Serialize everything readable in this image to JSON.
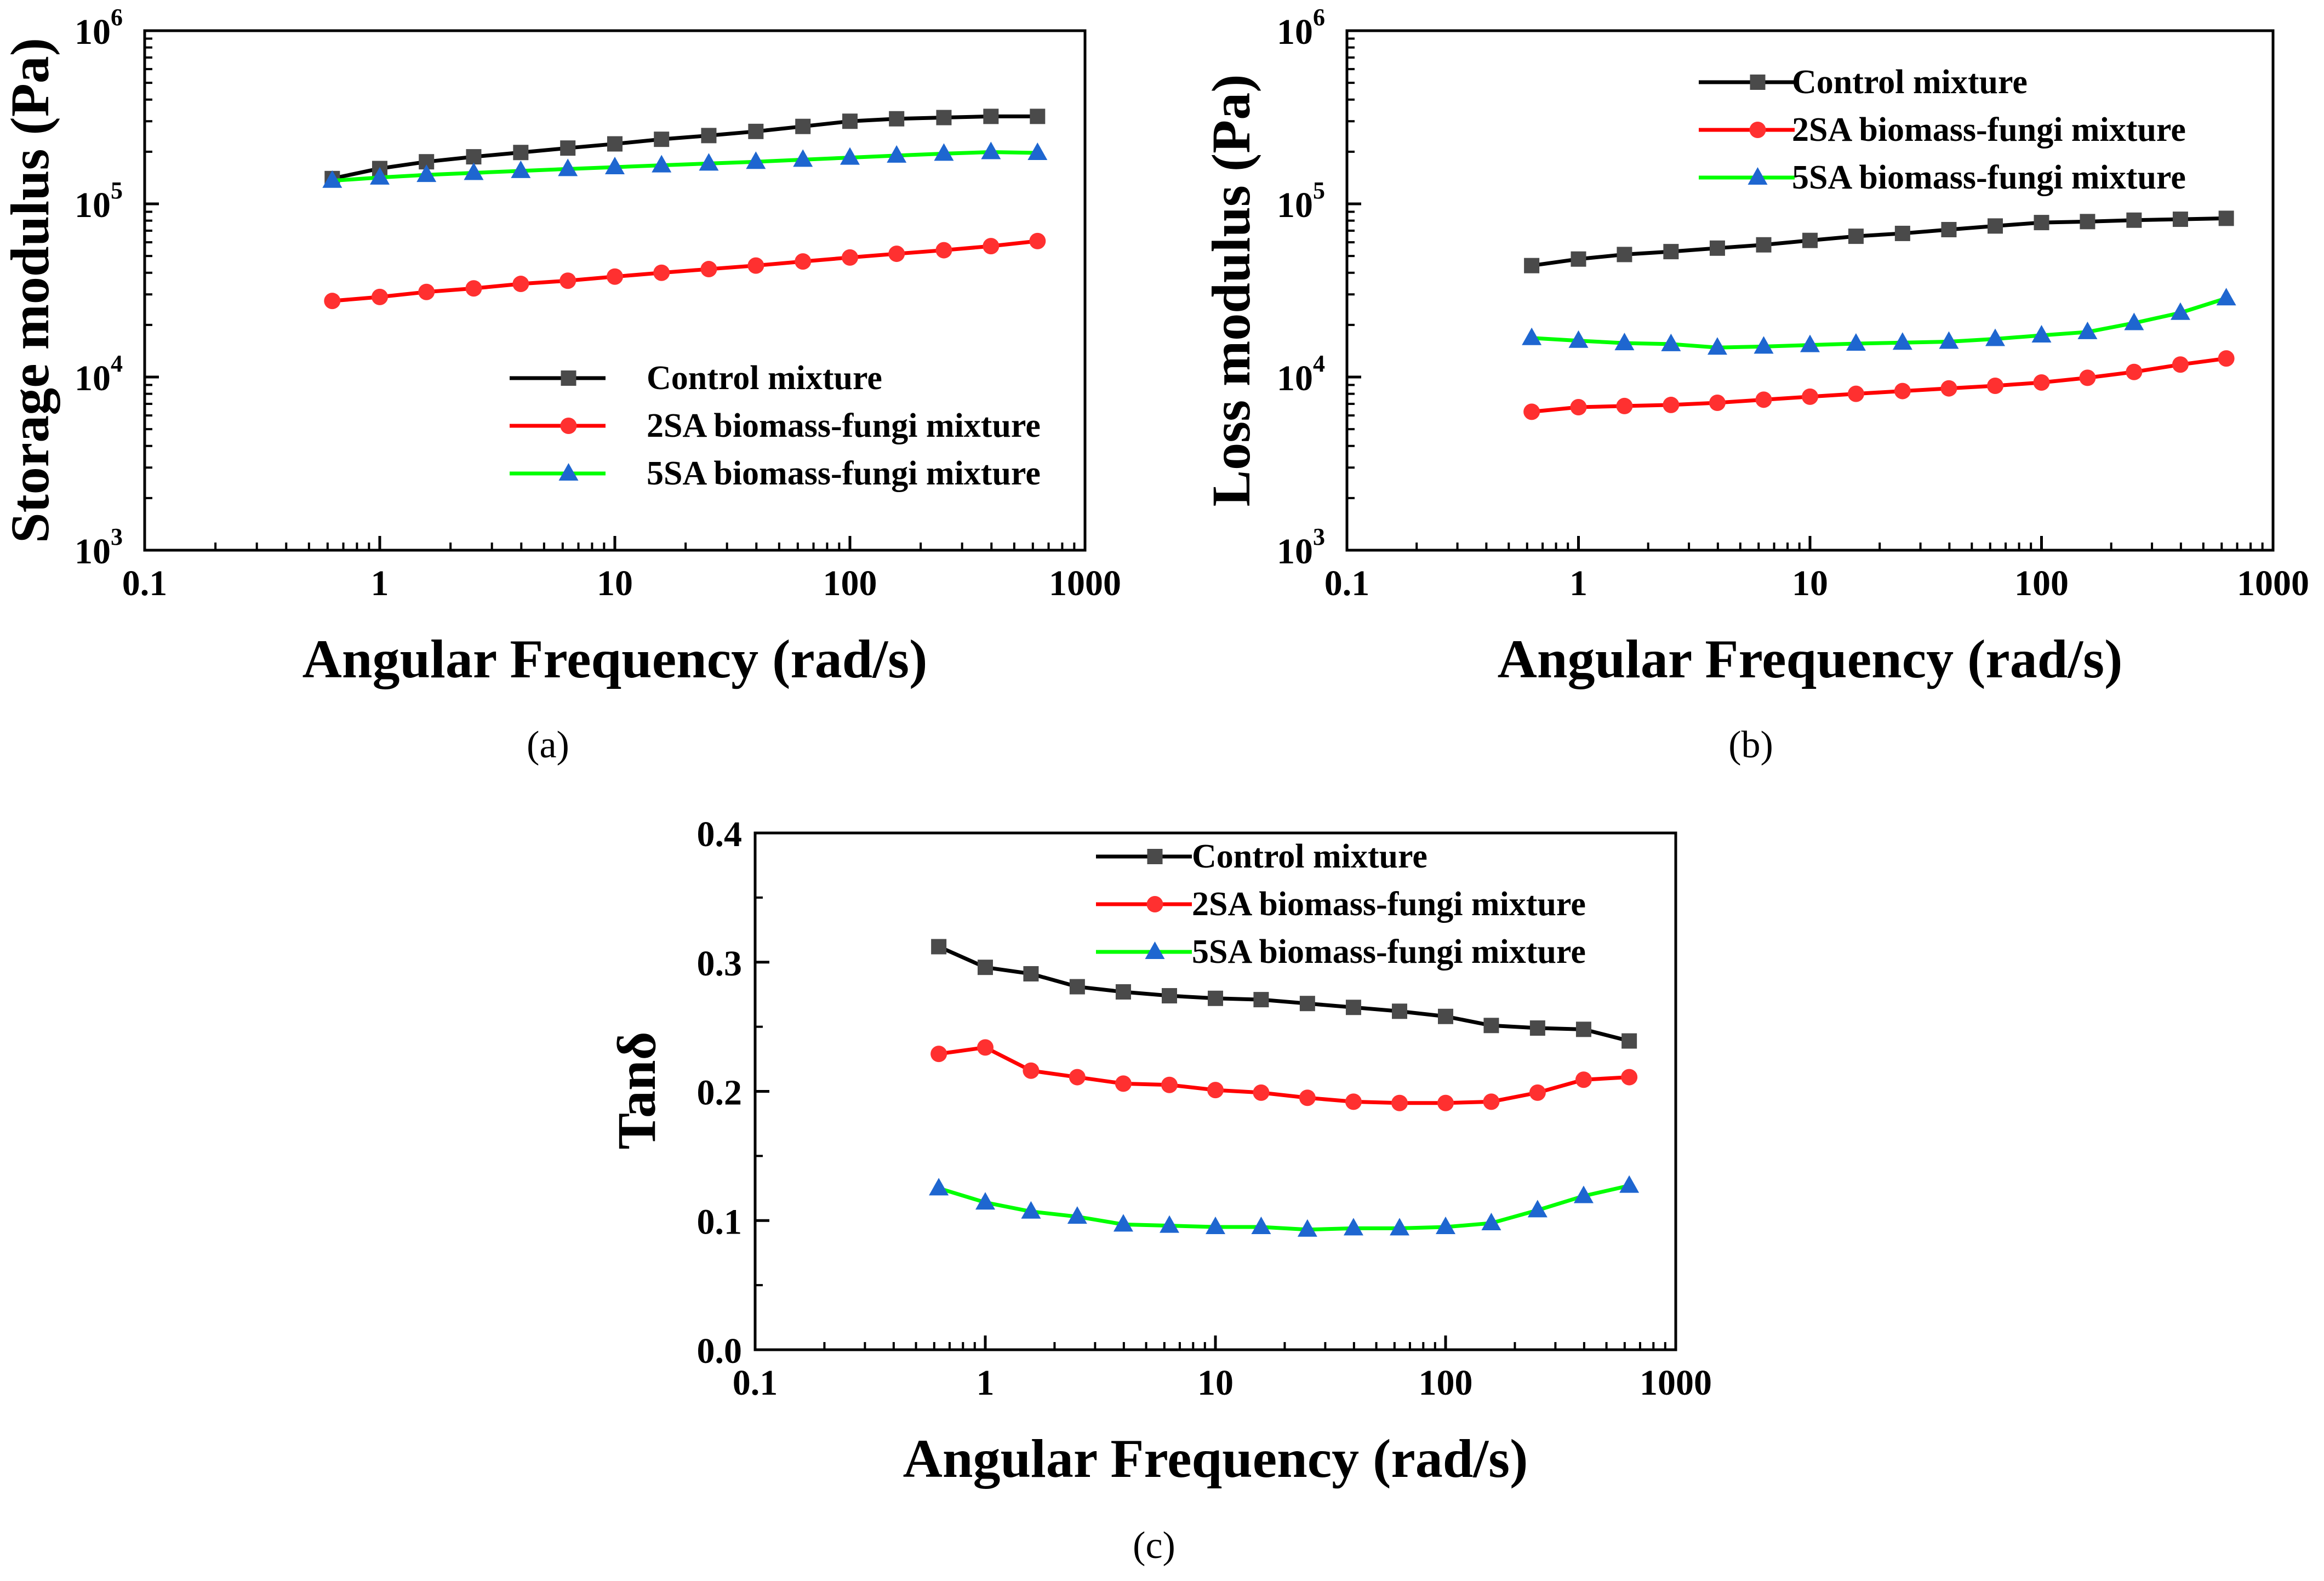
{
  "figure": {
    "panels": [
      {
        "caption_a": "(",
        "caption_b": "a",
        "caption_c": ")"
      },
      {
        "caption_a": "(",
        "caption_b": "b",
        "caption_c": ")"
      },
      {
        "caption_a": "(",
        "caption_b": "c",
        "caption_c": ")"
      }
    ]
  },
  "chart_data": [
    {
      "type": "line",
      "panel": "a",
      "xlabel": "Angular Frequency (rad/s)",
      "ylabel": "Storage modulus (Pa)",
      "xscale": "log",
      "yscale": "log",
      "xlim": [
        0.1,
        1000
      ],
      "ylim": [
        1000,
        1000000
      ],
      "xticks": [
        "0.1",
        "1",
        "10",
        "100",
        "1000"
      ],
      "yticks": [
        {
          "base": "10",
          "exp": "3"
        },
        {
          "base": "10",
          "exp": "4"
        },
        {
          "base": "10",
          "exp": "5"
        },
        {
          "base": "10",
          "exp": "6"
        }
      ],
      "legend_position": "bottom-right",
      "x": [
        0.628,
        1,
        1.58,
        2.51,
        3.98,
        6.31,
        10,
        15.8,
        25.1,
        39.8,
        63.1,
        100,
        158,
        251,
        398,
        628
      ],
      "series": [
        {
          "name": "Control mixture",
          "color": "#000000",
          "marker": "square",
          "marker_color": "#4a4a4a",
          "values": [
            140000,
            160000,
            175000,
            187000,
            198000,
            210000,
            222000,
            236000,
            248000,
            262000,
            280000,
            300000,
            310000,
            315000,
            320000,
            320000
          ]
        },
        {
          "name": "2SA biomass-fungi mixture",
          "color": "#ff0000",
          "marker": "circle",
          "marker_color": "#ff3030",
          "values": [
            27500,
            29000,
            31000,
            32500,
            34500,
            36000,
            38000,
            40000,
            42000,
            44000,
            46500,
            49000,
            51500,
            54000,
            57000,
            61000
          ]
        },
        {
          "name": "5SA biomass-fungi mixture",
          "color": "#00ff00",
          "marker": "triangle",
          "marker_color": "#1e66d0",
          "values": [
            136000,
            142000,
            147000,
            151000,
            155000,
            159000,
            163000,
            167000,
            171000,
            175000,
            180000,
            185000,
            190000,
            195000,
            199000,
            197000
          ]
        }
      ]
    },
    {
      "type": "line",
      "panel": "b",
      "xlabel": "Angular Frequency (rad/s)",
      "ylabel": "Loss modulus (Pa)",
      "xscale": "log",
      "yscale": "log",
      "xlim": [
        0.1,
        1000
      ],
      "ylim": [
        1000,
        1000000
      ],
      "xticks": [
        "0.1",
        "1",
        "10",
        "100",
        "1000"
      ],
      "yticks": [
        {
          "base": "10",
          "exp": "3"
        },
        {
          "base": "10",
          "exp": "4"
        },
        {
          "base": "10",
          "exp": "5"
        },
        {
          "base": "10",
          "exp": "6"
        }
      ],
      "legend_position": "top-right",
      "x": [
        0.628,
        1,
        1.58,
        2.51,
        3.98,
        6.31,
        10,
        15.8,
        25.1,
        39.8,
        63.1,
        100,
        158,
        251,
        398,
        628
      ],
      "series": [
        {
          "name": "Control mixture",
          "color": "#000000",
          "marker": "square",
          "marker_color": "#4a4a4a",
          "values": [
            44000,
            48000,
            51000,
            53000,
            55500,
            58000,
            61500,
            65000,
            67500,
            71000,
            74500,
            78000,
            79000,
            80500,
            81500,
            82500
          ]
        },
        {
          "name": "2SA biomass-fungi mixture",
          "color": "#ff0000",
          "marker": "circle",
          "marker_color": "#ff3030",
          "values": [
            6300,
            6700,
            6800,
            6900,
            7100,
            7400,
            7700,
            8000,
            8300,
            8600,
            8900,
            9300,
            9900,
            10700,
            11800,
            12800
          ]
        },
        {
          "name": "5SA biomass-fungi mixture",
          "color": "#00ff00",
          "marker": "triangle",
          "marker_color": "#1e66d0",
          "values": [
            16800,
            16200,
            15700,
            15500,
            14800,
            15000,
            15300,
            15600,
            15800,
            16000,
            16600,
            17400,
            18200,
            20500,
            23500,
            28500
          ]
        }
      ]
    },
    {
      "type": "line",
      "panel": "c",
      "xlabel": "Angular Frequency (rad/s)",
      "ylabel": "Tanδ",
      "xscale": "log",
      "yscale": "linear",
      "xlim": [
        0.1,
        1000
      ],
      "ylim": [
        0,
        0.4
      ],
      "xticks": [
        "0.1",
        "1",
        "10",
        "100",
        "1000"
      ],
      "yticks": [
        "0.0",
        "0.1",
        "0.2",
        "0.3",
        "0.4"
      ],
      "legend_position": "top-right",
      "x": [
        0.628,
        1,
        1.58,
        2.51,
        3.98,
        6.31,
        10,
        15.8,
        25.1,
        39.8,
        63.1,
        100,
        158,
        251,
        398,
        628
      ],
      "series": [
        {
          "name": "Control mixture",
          "color": "#000000",
          "marker": "square",
          "marker_color": "#4a4a4a",
          "values": [
            0.312,
            0.296,
            0.291,
            0.281,
            0.277,
            0.274,
            0.272,
            0.271,
            0.268,
            0.265,
            0.262,
            0.258,
            0.251,
            0.249,
            0.248,
            0.239
          ]
        },
        {
          "name": "2SA biomass-fungi mixture",
          "color": "#ff0000",
          "marker": "circle",
          "marker_color": "#ff3030",
          "values": [
            0.229,
            0.234,
            0.216,
            0.211,
            0.206,
            0.205,
            0.201,
            0.199,
            0.195,
            0.192,
            0.191,
            0.191,
            0.192,
            0.199,
            0.209,
            0.211
          ]
        },
        {
          "name": "5SA biomass-fungi mixture",
          "color": "#00ff00",
          "marker": "triangle",
          "marker_color": "#1e66d0",
          "values": [
            0.125,
            0.114,
            0.107,
            0.103,
            0.097,
            0.096,
            0.095,
            0.095,
            0.093,
            0.094,
            0.094,
            0.095,
            0.098,
            0.108,
            0.119,
            0.127
          ]
        }
      ]
    }
  ]
}
